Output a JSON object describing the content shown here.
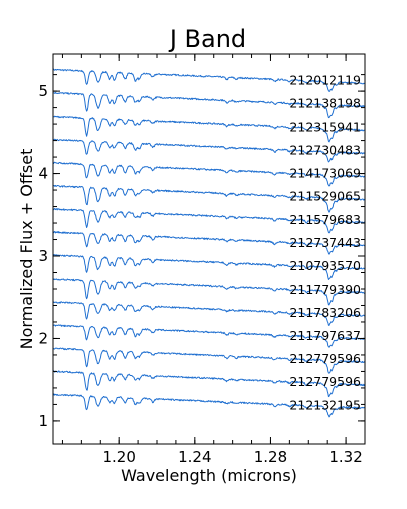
{
  "chart_data": {
    "type": "line",
    "title": "J Band",
    "xlabel": "Wavelength (microns)",
    "ylabel": "Normalized Flux + Offset",
    "xlim": [
      1.165,
      1.33
    ],
    "ylim": [
      0.72,
      5.45
    ],
    "xticks": [
      1.2,
      1.24,
      1.28,
      1.32
    ],
    "xtick_labels": [
      "1.20",
      "1.24",
      "1.28",
      "1.32"
    ],
    "yticks": [
      1,
      2,
      3,
      4,
      5
    ],
    "ytick_labels": [
      "1",
      "2",
      "3",
      "4",
      "5"
    ],
    "grid": false,
    "line_color": "#1f6fd0",
    "continuum_slope_per_micron": -1.0,
    "absorption_lines": [
      {
        "center": 1.1828,
        "depth": 0.22
      },
      {
        "center": 1.1883,
        "depth": 0.12
      },
      {
        "center": 1.1895,
        "depth": 0.1
      },
      {
        "center": 1.195,
        "depth": 0.1
      },
      {
        "center": 1.1975,
        "depth": 0.1
      },
      {
        "center": 1.2032,
        "depth": 0.08
      },
      {
        "center": 1.2086,
        "depth": 0.09
      },
      {
        "center": 1.2107,
        "depth": 0.07
      },
      {
        "center": 1.2178,
        "depth": 0.04
      },
      {
        "center": 1.2569,
        "depth": 0.03
      },
      {
        "center": 1.262,
        "depth": 0.02
      },
      {
        "center": 1.2822,
        "depth": 0.03
      },
      {
        "center": 1.2901,
        "depth": 0.02
      },
      {
        "center": 1.299,
        "depth": 0.03
      },
      {
        "center": 1.3087,
        "depth": 0.04
      },
      {
        "center": 1.3108,
        "depth": 0.16
      },
      {
        "center": 1.3127,
        "depth": 0.12
      },
      {
        "center": 1.315,
        "depth": 0.04
      }
    ],
    "series": [
      {
        "name": "212012119",
        "offset": 5.26
      },
      {
        "name": "212138198",
        "offset": 4.98
      },
      {
        "name": "212315941",
        "offset": 4.69
      },
      {
        "name": "212730483",
        "offset": 4.41
      },
      {
        "name": "214173069",
        "offset": 4.13
      },
      {
        "name": "211529065",
        "offset": 3.85
      },
      {
        "name": "211579683",
        "offset": 3.57
      },
      {
        "name": "212737443",
        "offset": 3.29
      },
      {
        "name": "210793570",
        "offset": 3.01
      },
      {
        "name": "211779390",
        "offset": 2.72
      },
      {
        "name": "211783206",
        "offset": 2.44
      },
      {
        "name": "211797637",
        "offset": 2.16
      },
      {
        "name": "212779596",
        "offset": 1.88
      },
      {
        "name": "212779596",
        "offset": 1.6
      },
      {
        "name": "212132195",
        "offset": 1.32
      }
    ]
  }
}
